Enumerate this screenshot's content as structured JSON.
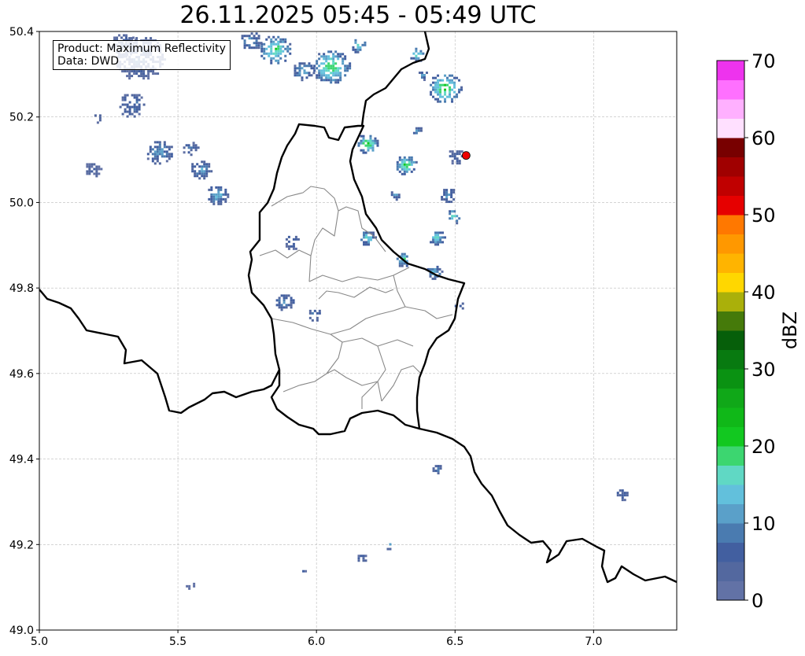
{
  "title": "26.11.2025 05:45 - 05:49 UTC",
  "legend": {
    "line1": "Product: Maximum Reflectivity",
    "line2": "Data: DWD"
  },
  "chart_data": {
    "type": "heatmap",
    "title": "26.11.2025 05:45 - 05:49 UTC",
    "xlim": [
      5.0,
      7.3
    ],
    "ylim": [
      49.0,
      50.4
    ],
    "xticks": [
      "5.0",
      "5.5",
      "6.0",
      "6.5",
      "7.0"
    ],
    "yticks": [
      "49.0",
      "49.2",
      "49.4",
      "49.6",
      "49.8",
      "50.0",
      "50.2",
      "50.4"
    ],
    "grid": true,
    "colorbar": {
      "label": "dBZ",
      "range": [
        0,
        70
      ],
      "ticks": [
        "0",
        "10",
        "20",
        "30",
        "40",
        "50",
        "60",
        "70"
      ],
      "step": 2.5,
      "colors": [
        "#6272a6",
        "#53689f",
        "#425fa0",
        "#4a7bb0",
        "#5aa0c9",
        "#62c0dc",
        "#60d8c4",
        "#3cd670",
        "#12c820",
        "#10b818",
        "#10a818",
        "#0a9212",
        "#087a10",
        "#065f0a",
        "#457a0a",
        "#aab00a",
        "#ffd700",
        "#ffb400",
        "#ff9800",
        "#ff7800",
        "#e60000",
        "#c00000",
        "#a00000",
        "#780000",
        "#ffe0ff",
        "#ffb0ff",
        "#ff70ff",
        "#ee33ee"
      ]
    },
    "marker": {
      "lon": 6.54,
      "lat": 50.11,
      "color": "#ee0000"
    },
    "echo_cells": [
      {
        "lon": 5.36,
        "lat": 50.34,
        "r": 0.09,
        "dbz": 8
      },
      {
        "lon": 5.3,
        "lat": 50.37,
        "r": 0.05,
        "dbz": 7
      },
      {
        "lon": 5.33,
        "lat": 50.23,
        "r": 0.05,
        "dbz": 9
      },
      {
        "lon": 5.21,
        "lat": 50.2,
        "r": 0.02,
        "dbz": 6
      },
      {
        "lon": 5.43,
        "lat": 50.12,
        "r": 0.05,
        "dbz": 12
      },
      {
        "lon": 5.54,
        "lat": 50.13,
        "r": 0.03,
        "dbz": 8
      },
      {
        "lon": 5.58,
        "lat": 50.08,
        "r": 0.04,
        "dbz": 12
      },
      {
        "lon": 5.64,
        "lat": 50.02,
        "r": 0.04,
        "dbz": 14
      },
      {
        "lon": 5.19,
        "lat": 50.08,
        "r": 0.03,
        "dbz": 6
      },
      {
        "lon": 5.85,
        "lat": 50.36,
        "r": 0.06,
        "dbz": 20
      },
      {
        "lon": 5.76,
        "lat": 50.38,
        "r": 0.04,
        "dbz": 12
      },
      {
        "lon": 6.05,
        "lat": 50.32,
        "r": 0.07,
        "dbz": 21
      },
      {
        "lon": 5.95,
        "lat": 50.31,
        "r": 0.04,
        "dbz": 14
      },
      {
        "lon": 6.15,
        "lat": 50.37,
        "r": 0.03,
        "dbz": 17
      },
      {
        "lon": 6.36,
        "lat": 50.35,
        "r": 0.03,
        "dbz": 18
      },
      {
        "lon": 6.46,
        "lat": 50.27,
        "r": 0.06,
        "dbz": 23
      },
      {
        "lon": 6.18,
        "lat": 50.14,
        "r": 0.04,
        "dbz": 22
      },
      {
        "lon": 6.32,
        "lat": 50.09,
        "r": 0.04,
        "dbz": 21
      },
      {
        "lon": 6.47,
        "lat": 50.02,
        "r": 0.03,
        "dbz": 12
      },
      {
        "lon": 6.49,
        "lat": 49.97,
        "r": 0.03,
        "dbz": 18
      },
      {
        "lon": 6.43,
        "lat": 49.92,
        "r": 0.03,
        "dbz": 18
      },
      {
        "lon": 6.18,
        "lat": 49.92,
        "r": 0.03,
        "dbz": 17
      },
      {
        "lon": 6.31,
        "lat": 49.87,
        "r": 0.03,
        "dbz": 18
      },
      {
        "lon": 6.42,
        "lat": 49.84,
        "r": 0.03,
        "dbz": 14
      },
      {
        "lon": 5.91,
        "lat": 49.91,
        "r": 0.03,
        "dbz": 10
      },
      {
        "lon": 5.88,
        "lat": 49.77,
        "r": 0.035,
        "dbz": 12
      },
      {
        "lon": 5.99,
        "lat": 49.74,
        "r": 0.025,
        "dbz": 10
      },
      {
        "lon": 6.51,
        "lat": 49.76,
        "r": 0.02,
        "dbz": 10
      },
      {
        "lon": 6.43,
        "lat": 49.38,
        "r": 0.02,
        "dbz": 10
      },
      {
        "lon": 7.1,
        "lat": 49.32,
        "r": 0.025,
        "dbz": 8
      },
      {
        "lon": 6.26,
        "lat": 49.2,
        "r": 0.015,
        "dbz": 14
      },
      {
        "lon": 6.16,
        "lat": 49.17,
        "r": 0.02,
        "dbz": 8
      },
      {
        "lon": 5.54,
        "lat": 49.11,
        "r": 0.02,
        "dbz": 6
      },
      {
        "lon": 5.95,
        "lat": 49.14,
        "r": 0.01,
        "dbz": 6
      },
      {
        "lon": 6.28,
        "lat": 50.02,
        "r": 0.02,
        "dbz": 12
      },
      {
        "lon": 6.36,
        "lat": 50.17,
        "r": 0.02,
        "dbz": 10
      },
      {
        "lon": 6.5,
        "lat": 50.11,
        "r": 0.03,
        "dbz": 8
      },
      {
        "lon": 6.38,
        "lat": 50.3,
        "r": 0.02,
        "dbz": 12
      }
    ]
  }
}
